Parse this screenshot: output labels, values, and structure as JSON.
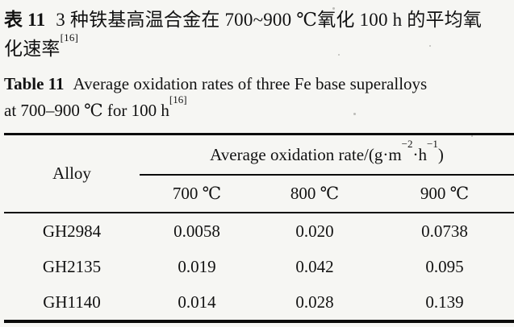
{
  "colors": {
    "background": "#f6f6f3",
    "text": "#121212",
    "rule": "#0b0b0b"
  },
  "caption_zh": {
    "label": "表 11",
    "line1_rest": "3 种铁基高温合金在 700~900 ℃氧化 100 h 的平均氧",
    "line2": "化速率",
    "ref": "[16]"
  },
  "caption_en": {
    "label": "Table 11",
    "line1_rest": "Average oxidation rates of three Fe base superalloys",
    "line2": "at 700–900 ℃ for 100 h",
    "ref": "[16]"
  },
  "table": {
    "alloy_header": "Alloy",
    "unit_header": {
      "prefix": "Average oxidation rate/(g·m",
      "sup1": "−2",
      "mid": "·h",
      "sup2": "−1",
      "suffix": ")"
    },
    "temp_headers": [
      "700 ℃",
      "800 ℃",
      "900 ℃"
    ],
    "rows": [
      {
        "alloy": "GH2984",
        "values": [
          "0.0058",
          "0.020",
          "0.0738"
        ]
      },
      {
        "alloy": "GH2135",
        "values": [
          "0.019",
          "0.042",
          "0.095"
        ]
      },
      {
        "alloy": "GH1140",
        "values": [
          "0.014",
          "0.028",
          "0.139"
        ]
      }
    ]
  },
  "chart_data": {
    "type": "table",
    "title": "Average oxidation rates of three Fe base superalloys at 700–900 ℃ for 100 h",
    "unit": "g·m−2·h−1",
    "columns": [
      "Alloy",
      "700 ℃",
      "800 ℃",
      "900 ℃"
    ],
    "rows": [
      [
        "GH2984",
        0.0058,
        0.02,
        0.0738
      ],
      [
        "GH2135",
        0.019,
        0.042,
        0.095
      ],
      [
        "GH1140",
        0.014,
        0.028,
        0.139
      ]
    ]
  }
}
